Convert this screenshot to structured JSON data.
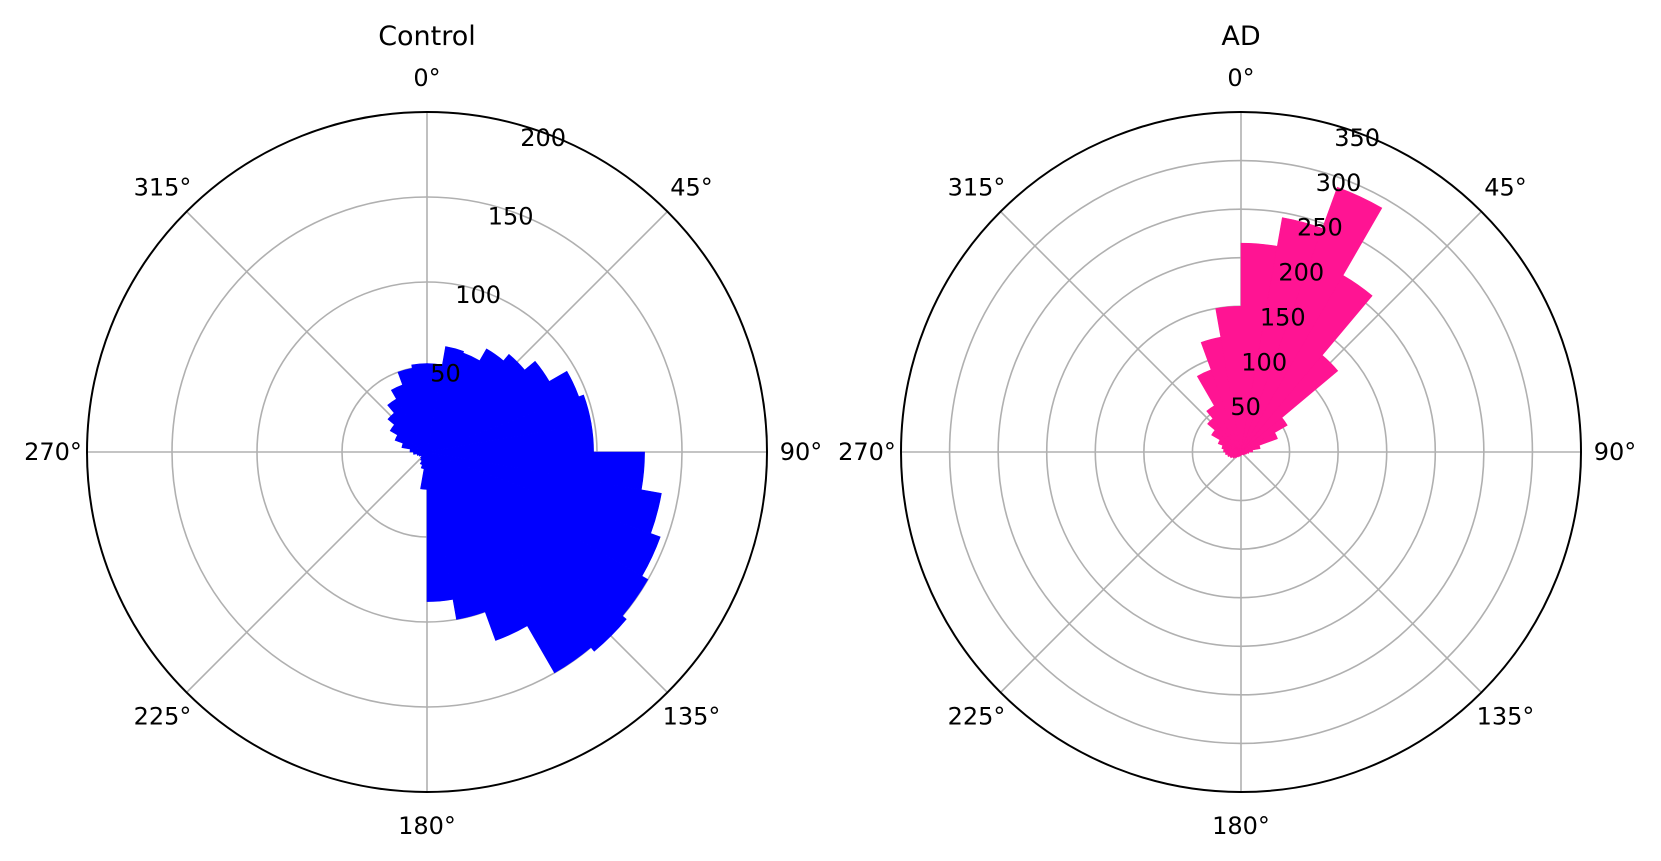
{
  "chart_data": [
    {
      "type": "polar-histogram",
      "title": "Control",
      "theta_zero": "N",
      "theta_direction": "clockwise",
      "bin_width_deg": 10,
      "color": "#0000ff",
      "rmax": 200,
      "r_ticks": [
        50,
        100,
        150,
        200
      ],
      "r_tick_label_angle_deg": 22.5,
      "theta_ticks": [
        "0°",
        "45°",
        "90°",
        "135°",
        "180°",
        "225°",
        "270°",
        "315°"
      ],
      "bars": [
        {
          "start_deg": 0,
          "value": 52
        },
        {
          "start_deg": 10,
          "value": 63
        },
        {
          "start_deg": 20,
          "value": 62
        },
        {
          "start_deg": 30,
          "value": 70
        },
        {
          "start_deg": 40,
          "value": 75
        },
        {
          "start_deg": 50,
          "value": 83
        },
        {
          "start_deg": 60,
          "value": 95
        },
        {
          "start_deg": 70,
          "value": 98
        },
        {
          "start_deg": 80,
          "value": 98
        },
        {
          "start_deg": 90,
          "value": 128
        },
        {
          "start_deg": 100,
          "value": 140
        },
        {
          "start_deg": 110,
          "value": 146
        },
        {
          "start_deg": 120,
          "value": 150
        },
        {
          "start_deg": 130,
          "value": 153
        },
        {
          "start_deg": 140,
          "value": 150
        },
        {
          "start_deg": 150,
          "value": 118
        },
        {
          "start_deg": 160,
          "value": 100
        },
        {
          "start_deg": 170,
          "value": 88
        },
        {
          "start_deg": 180,
          "value": 22
        },
        {
          "start_deg": 190,
          "value": 10
        },
        {
          "start_deg": 200,
          "value": 8
        },
        {
          "start_deg": 210,
          "value": 6
        },
        {
          "start_deg": 220,
          "value": 5
        },
        {
          "start_deg": 230,
          "value": 4
        },
        {
          "start_deg": 240,
          "value": 5
        },
        {
          "start_deg": 250,
          "value": 6
        },
        {
          "start_deg": 260,
          "value": 8
        },
        {
          "start_deg": 270,
          "value": 10
        },
        {
          "start_deg": 280,
          "value": 15
        },
        {
          "start_deg": 290,
          "value": 20
        },
        {
          "start_deg": 300,
          "value": 25
        },
        {
          "start_deg": 310,
          "value": 30
        },
        {
          "start_deg": 320,
          "value": 36
        },
        {
          "start_deg": 330,
          "value": 42
        },
        {
          "start_deg": 340,
          "value": 50
        },
        {
          "start_deg": 350,
          "value": 52
        }
      ]
    },
    {
      "type": "polar-histogram",
      "title": "AD",
      "theta_zero": "N",
      "theta_direction": "clockwise",
      "bin_width_deg": 10,
      "color": "#ff1493",
      "rmax": 350,
      "r_ticks": [
        50,
        100,
        150,
        200,
        250,
        300,
        350
      ],
      "r_tick_label_angle_deg": 22.5,
      "theta_ticks": [
        "0°",
        "45°",
        "90°",
        "135°",
        "180°",
        "225°",
        "270°",
        "315°"
      ],
      "bars": [
        {
          "start_deg": 0,
          "value": 215
        },
        {
          "start_deg": 10,
          "value": 245
        },
        {
          "start_deg": 20,
          "value": 290
        },
        {
          "start_deg": 30,
          "value": 210
        },
        {
          "start_deg": 40,
          "value": 130
        },
        {
          "start_deg": 50,
          "value": 55
        },
        {
          "start_deg": 60,
          "value": 40
        },
        {
          "start_deg": 70,
          "value": 20
        },
        {
          "start_deg": 80,
          "value": 12
        },
        {
          "start_deg": 90,
          "value": 8
        },
        {
          "start_deg": 100,
          "value": 6
        },
        {
          "start_deg": 110,
          "value": 5
        },
        {
          "start_deg": 120,
          "value": 4
        },
        {
          "start_deg": 130,
          "value": 4
        },
        {
          "start_deg": 140,
          "value": 3
        },
        {
          "start_deg": 150,
          "value": 3
        },
        {
          "start_deg": 160,
          "value": 3
        },
        {
          "start_deg": 170,
          "value": 3
        },
        {
          "start_deg": 180,
          "value": 4
        },
        {
          "start_deg": 190,
          "value": 4
        },
        {
          "start_deg": 200,
          "value": 5
        },
        {
          "start_deg": 210,
          "value": 6
        },
        {
          "start_deg": 220,
          "value": 8
        },
        {
          "start_deg": 230,
          "value": 10
        },
        {
          "start_deg": 240,
          "value": 12
        },
        {
          "start_deg": 250,
          "value": 14
        },
        {
          "start_deg": 260,
          "value": 16
        },
        {
          "start_deg": 270,
          "value": 18
        },
        {
          "start_deg": 280,
          "value": 20
        },
        {
          "start_deg": 290,
          "value": 25
        },
        {
          "start_deg": 300,
          "value": 35
        },
        {
          "start_deg": 310,
          "value": 45
        },
        {
          "start_deg": 320,
          "value": 55
        },
        {
          "start_deg": 330,
          "value": 90
        },
        {
          "start_deg": 340,
          "value": 120
        },
        {
          "start_deg": 350,
          "value": 150
        }
      ]
    }
  ]
}
